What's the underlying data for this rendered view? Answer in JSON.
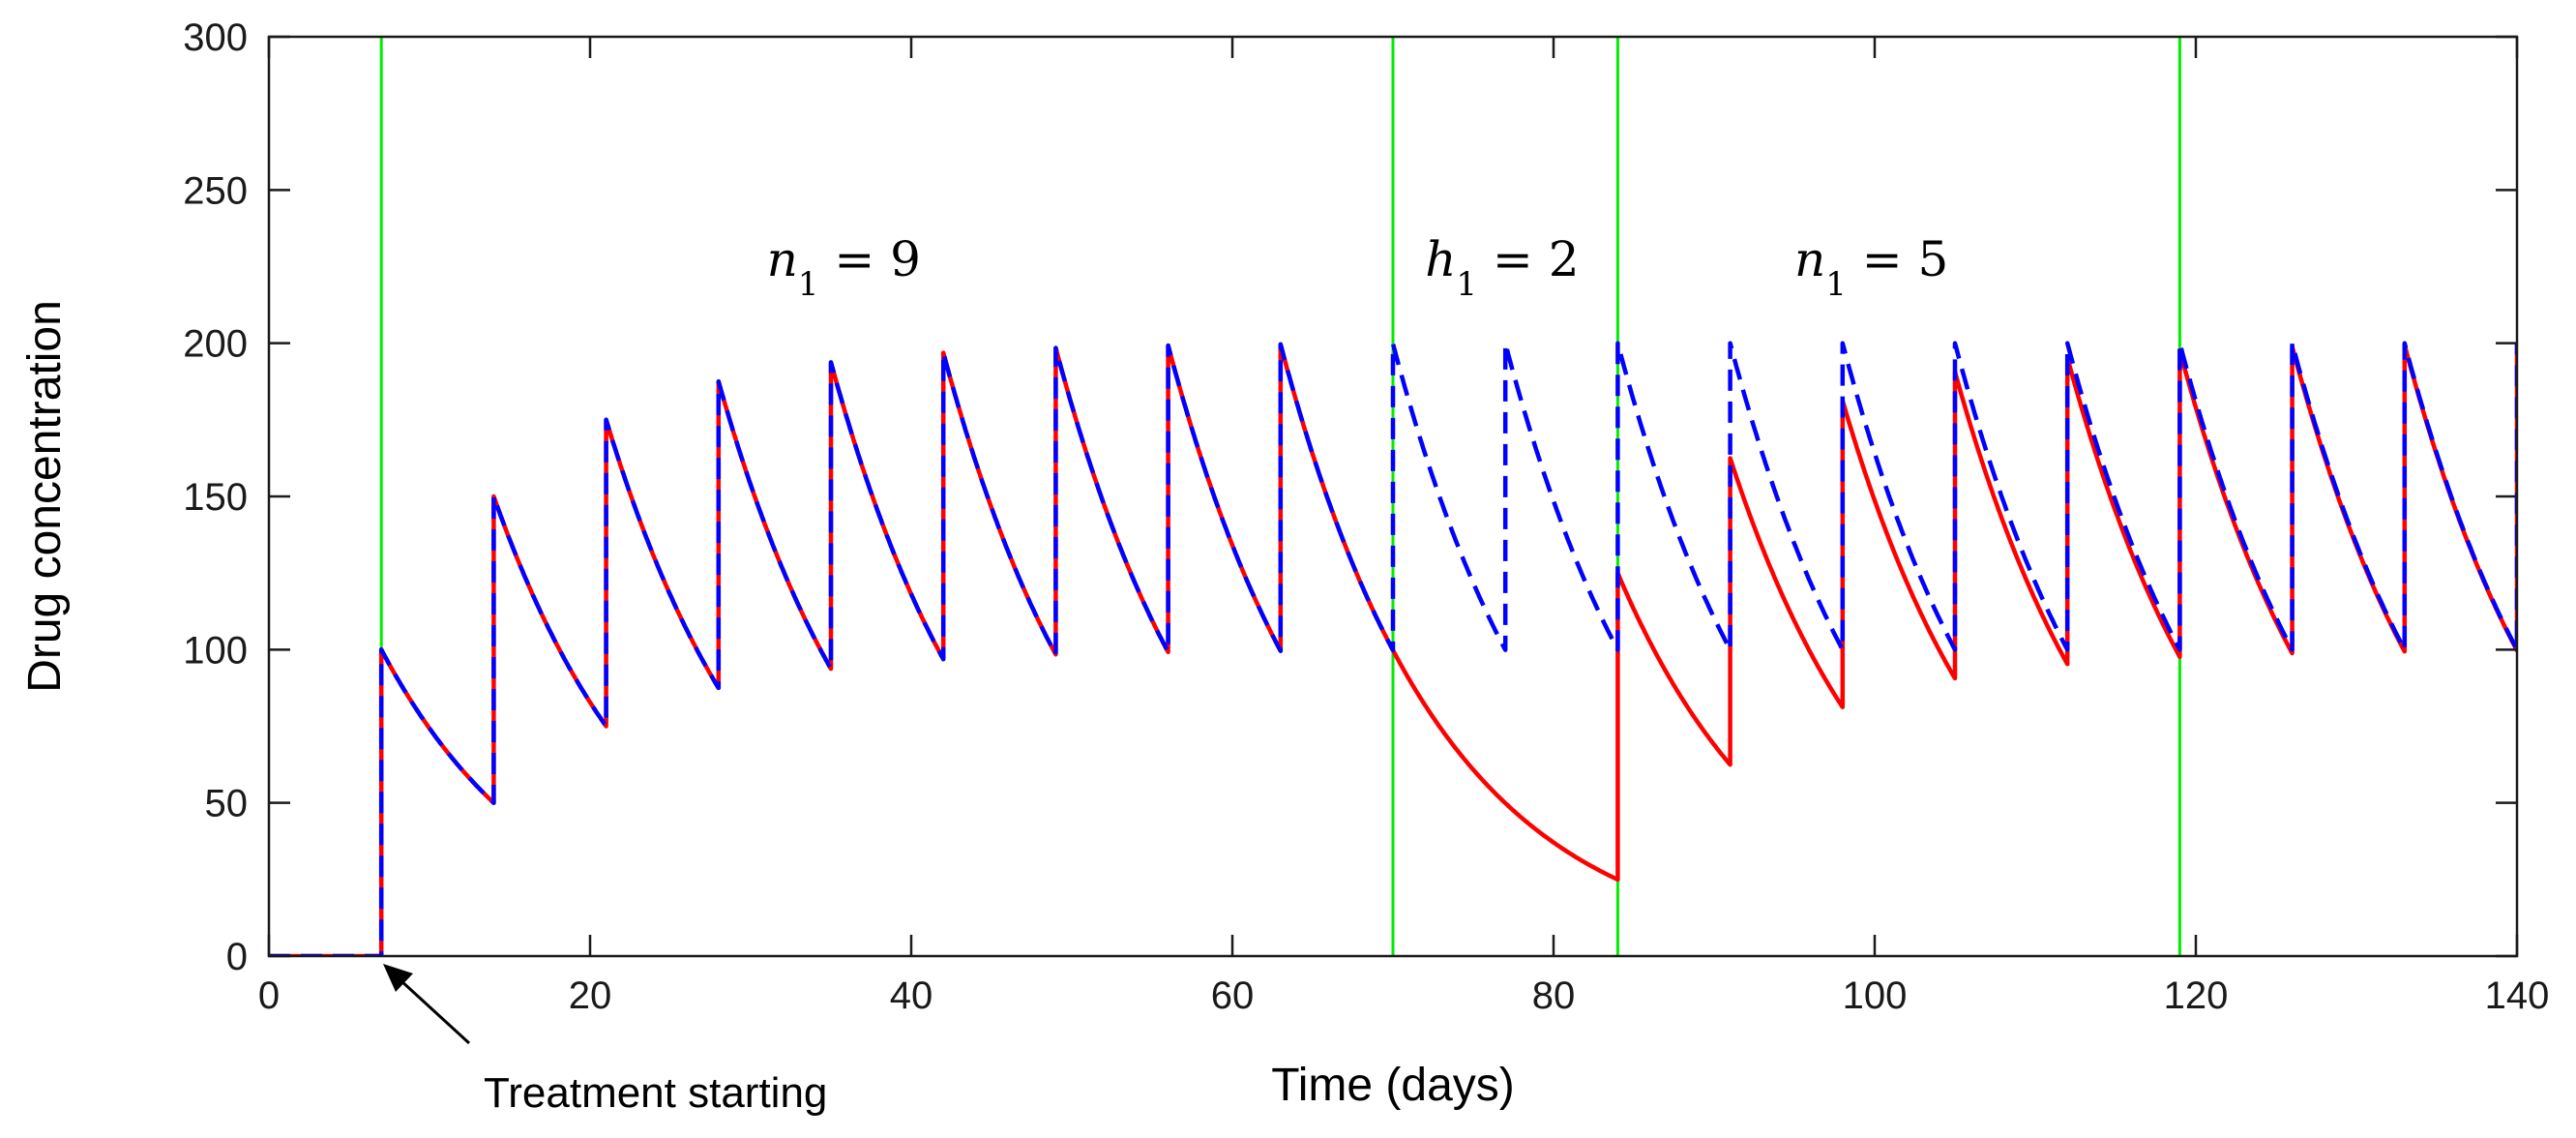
{
  "chart_data": {
    "type": "line",
    "title": "",
    "xlabel": "Time (days)",
    "ylabel": "Drug concentration",
    "xlim": [
      0,
      140
    ],
    "ylim": [
      0,
      300
    ],
    "xticks": [
      0,
      20,
      40,
      60,
      80,
      100,
      120,
      140
    ],
    "yticks": [
      0,
      50,
      100,
      150,
      200,
      250,
      300
    ],
    "grid": false,
    "legend": "none",
    "colors": {
      "red": "#ff0000",
      "blue": "#0000ff",
      "green": "#00ee00"
    },
    "dosing": {
      "start_day": 7,
      "interval_days": 7,
      "dose": 100,
      "decay_factor_per_interval": 0.5
    },
    "series": [
      {
        "name": "red solid (dosing with holiday)",
        "style": "solid",
        "color": "#ff0000",
        "dose_days": [
          7,
          14,
          21,
          28,
          35,
          42,
          49,
          56,
          63,
          84,
          91,
          98,
          105,
          112,
          119,
          126,
          133,
          140
        ]
      },
      {
        "name": "blue dashed (continuous dosing)",
        "style": "dashed",
        "color": "#0000ff",
        "dose_days": [
          7,
          14,
          21,
          28,
          35,
          42,
          49,
          56,
          63,
          70,
          77,
          84,
          91,
          98,
          105,
          112,
          119,
          126,
          133,
          140
        ]
      }
    ],
    "vertical_lines": [
      7,
      70,
      84,
      119
    ],
    "annotations": [
      {
        "var": "n",
        "sub": "1",
        "rest": " = 9",
        "x": 31,
        "y": 222
      },
      {
        "var": "h",
        "sub": "1",
        "rest": " = 2",
        "x": 72,
        "y": 222
      },
      {
        "var": "n",
        "sub": "1",
        "rest": " = 5",
        "x": 95,
        "y": 222
      }
    ],
    "arrow_annotation": {
      "text": "Treatment starting",
      "target_x": 7,
      "target_y": 0
    }
  }
}
